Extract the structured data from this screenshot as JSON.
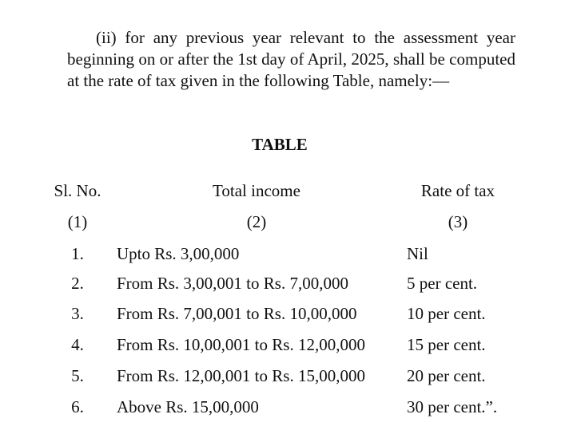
{
  "paragraph": "(ii) for any previous year relevant to the assessment year beginning on or after the 1st day of April, 2025, shall be computed at the rate of tax given in the following Table, namely:—",
  "table": {
    "title": "TABLE",
    "headers": [
      "Sl. No.",
      "Total income",
      "Rate of tax"
    ],
    "column_numbers": [
      "(1)",
      "(2)",
      "(3)"
    ],
    "rows": [
      {
        "sl": "1.",
        "income": "Upto Rs. 3,00,000",
        "rate": "Nil"
      },
      {
        "sl": "2.",
        "income": "From Rs. 3,00,001 to Rs. 7,00,000",
        "rate": "5 per cent."
      },
      {
        "sl": "3.",
        "income": "From Rs. 7,00,001 to Rs. 10,00,000",
        "rate": "10 per cent."
      },
      {
        "sl": "4.",
        "income": "From Rs. 10,00,001 to Rs. 12,00,000",
        "rate": "15 per cent."
      },
      {
        "sl": "5.",
        "income": "From Rs. 12,00,001 to Rs. 15,00,000",
        "rate": "20 per cent."
      },
      {
        "sl": "6.",
        "income": "Above Rs. 15,00,000",
        "rate": "30 per cent.”."
      }
    ]
  }
}
